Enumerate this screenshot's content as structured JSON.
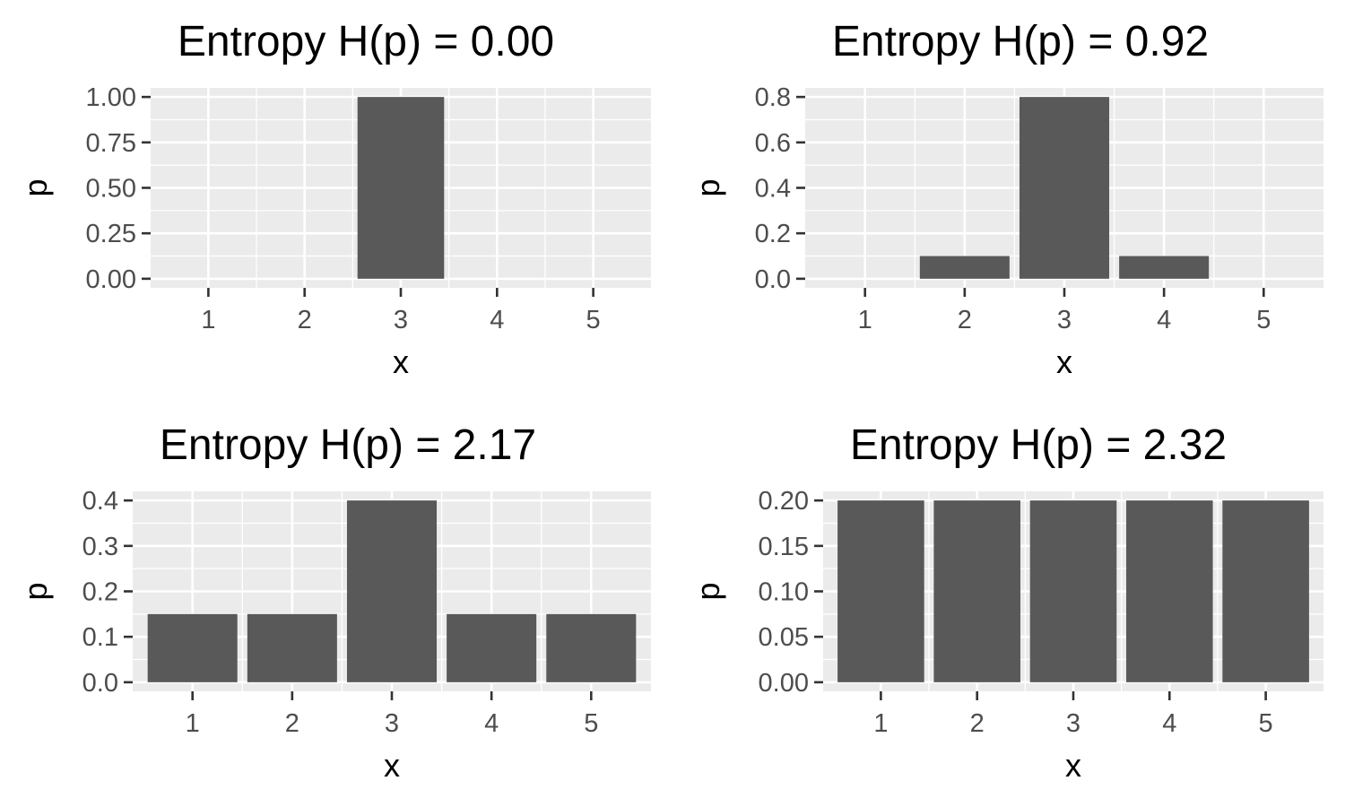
{
  "style": {
    "panel_bg": "#ebebeb",
    "grid_color": "#ffffff",
    "bar_color": "#595959",
    "tick_color": "#333333"
  },
  "chart_data": [
    {
      "type": "bar",
      "title": "Entropy H(p) = 0.00",
      "xlabel": "x",
      "ylabel": "p",
      "categories": [
        "1",
        "2",
        "3",
        "4",
        "5"
      ],
      "values": [
        0,
        0,
        1,
        0,
        0
      ],
      "ylim": [
        0,
        1
      ],
      "yticks": [
        0,
        0.25,
        0.5,
        0.75,
        1.0
      ],
      "ytick_labels": [
        "0.00",
        "0.25",
        "0.50",
        "0.75",
        "1.00"
      ]
    },
    {
      "type": "bar",
      "title": "Entropy H(p) = 0.92",
      "xlabel": "x",
      "ylabel": "p",
      "categories": [
        "1",
        "2",
        "3",
        "4",
        "5"
      ],
      "values": [
        0,
        0.1,
        0.8,
        0.1,
        0
      ],
      "ylim": [
        0,
        0.8
      ],
      "yticks": [
        0,
        0.2,
        0.4,
        0.6,
        0.8
      ],
      "ytick_labels": [
        "0.0",
        "0.2",
        "0.4",
        "0.6",
        "0.8"
      ]
    },
    {
      "type": "bar",
      "title": "Entropy H(p) = 2.17",
      "xlabel": "x",
      "ylabel": "p",
      "categories": [
        "1",
        "2",
        "3",
        "4",
        "5"
      ],
      "values": [
        0.15,
        0.15,
        0.4,
        0.15,
        0.15
      ],
      "ylim": [
        0,
        0.4
      ],
      "yticks": [
        0,
        0.1,
        0.2,
        0.3,
        0.4
      ],
      "ytick_labels": [
        "0.0",
        "0.1",
        "0.2",
        "0.3",
        "0.4"
      ]
    },
    {
      "type": "bar",
      "title": "Entropy H(p) = 2.32",
      "xlabel": "x",
      "ylabel": "p",
      "categories": [
        "1",
        "2",
        "3",
        "4",
        "5"
      ],
      "values": [
        0.2,
        0.2,
        0.2,
        0.2,
        0.2
      ],
      "ylim": [
        0,
        0.2
      ],
      "yticks": [
        0,
        0.05,
        0.1,
        0.15,
        0.2
      ],
      "ytick_labels": [
        "0.00",
        "0.05",
        "0.10",
        "0.15",
        "0.20"
      ]
    }
  ]
}
